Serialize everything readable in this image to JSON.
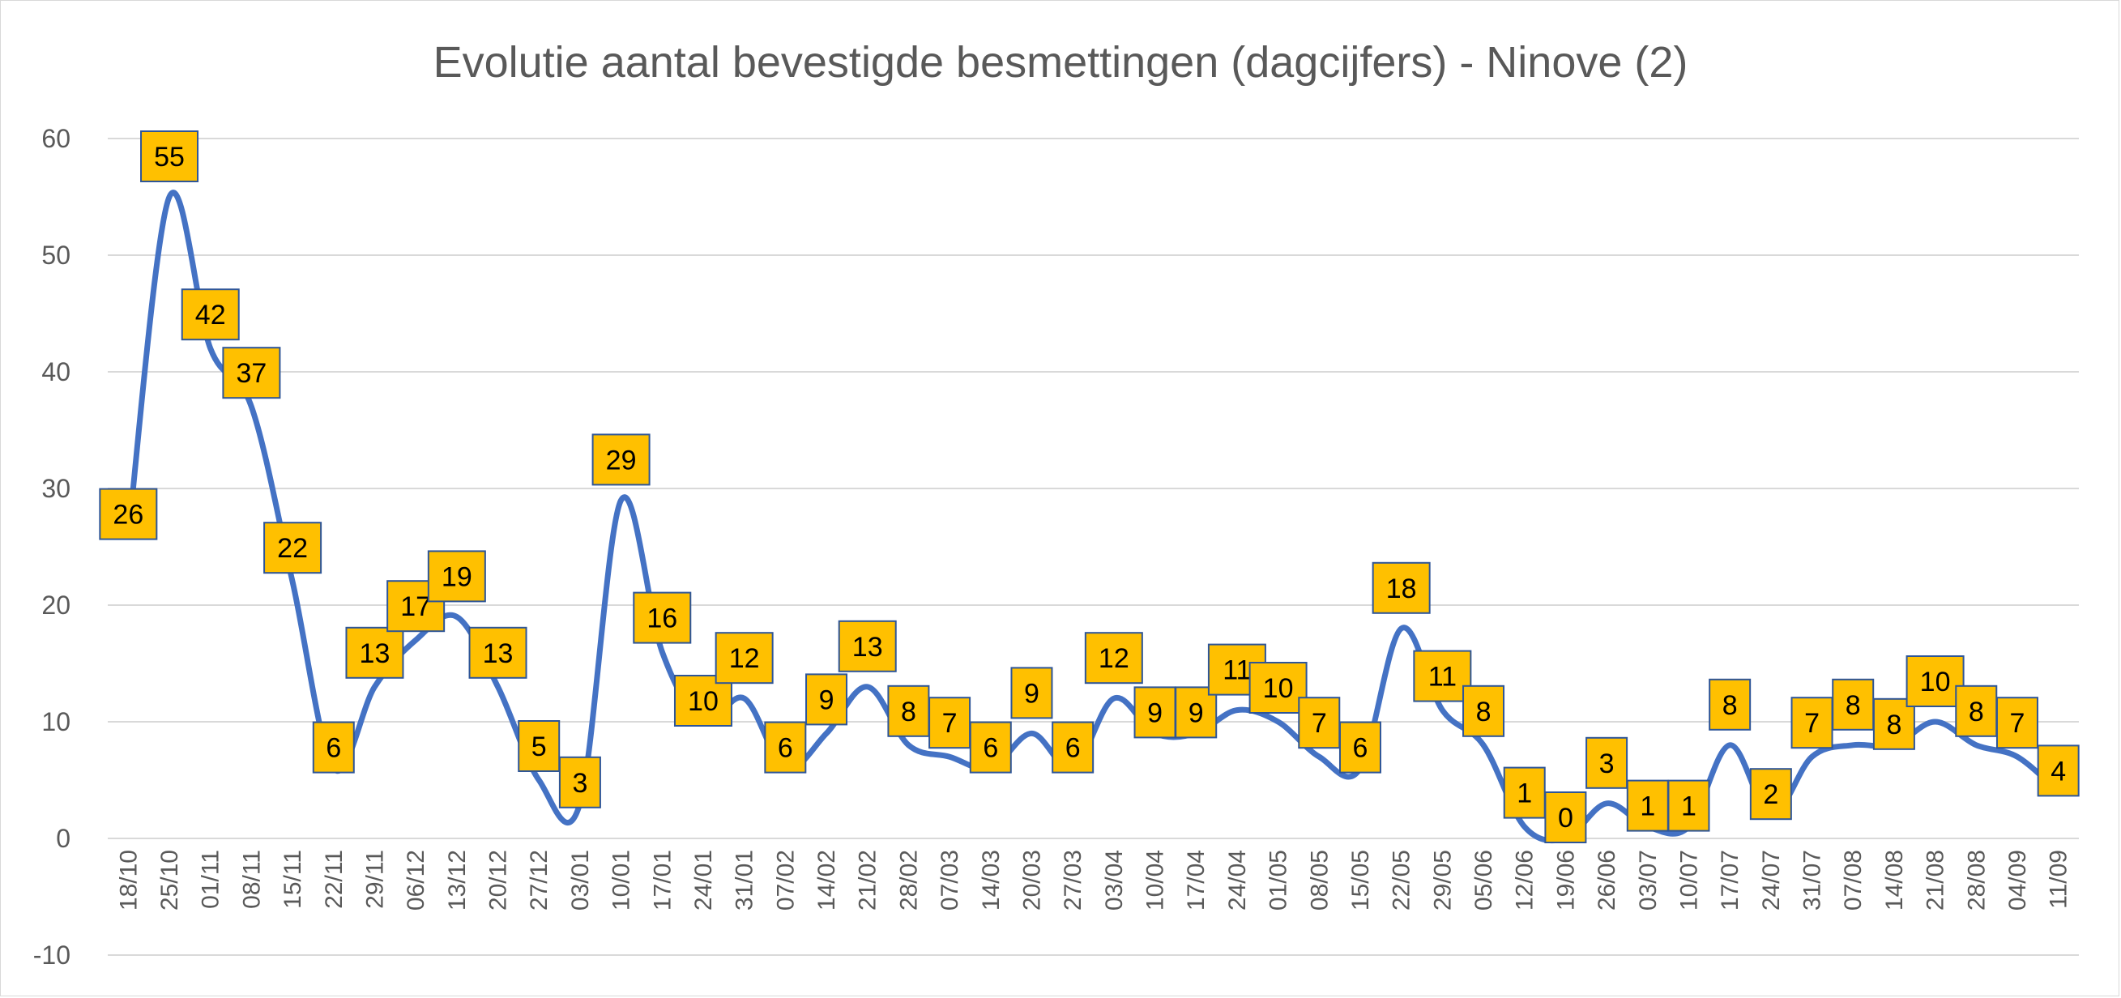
{
  "chart_data": {
    "type": "line",
    "title": "Evolutie aantal bevestigde besmettingen (dagcijfers) - Ninove (2)",
    "xlabel": "",
    "ylabel": "",
    "ylim": [
      -10,
      60
    ],
    "yticks": [
      -10,
      0,
      10,
      20,
      30,
      40,
      50,
      60
    ],
    "grid": true,
    "legend": "none",
    "smooth": true,
    "categories": [
      "18/10",
      "25/10",
      "01/11",
      "08/11",
      "15/11",
      "22/11",
      "29/11",
      "06/12",
      "13/12",
      "20/12",
      "27/12",
      "03/01",
      "10/01",
      "17/01",
      "24/01",
      "31/01",
      "07/02",
      "14/02",
      "21/02",
      "28/02",
      "07/03",
      "14/03",
      "20/03",
      "27/03",
      "03/04",
      "10/04",
      "17/04",
      "24/04",
      "01/05",
      "08/05",
      "15/05",
      "22/05",
      "29/05",
      "05/06",
      "12/06",
      "19/06",
      "26/06",
      "03/07",
      "10/07",
      "17/07",
      "24/07",
      "31/07",
      "07/08",
      "14/08",
      "21/08",
      "28/08",
      "04/09",
      "11/09"
    ],
    "series": [
      {
        "name": "Ninove",
        "color": "#4472C4",
        "label_color": "#FFC000",
        "label_border": "#2E5597",
        "values": [
          26,
          55,
          42,
          37,
          22,
          6,
          13,
          17,
          19,
          13,
          5,
          3,
          29,
          16,
          10,
          12,
          6,
          9,
          13,
          8,
          7,
          6,
          9,
          6,
          12,
          9,
          9,
          11,
          10,
          7,
          6,
          18,
          11,
          8,
          1,
          0,
          3,
          1,
          1,
          8,
          2,
          7,
          8,
          8,
          10,
          8,
          7,
          4
        ]
      }
    ]
  }
}
